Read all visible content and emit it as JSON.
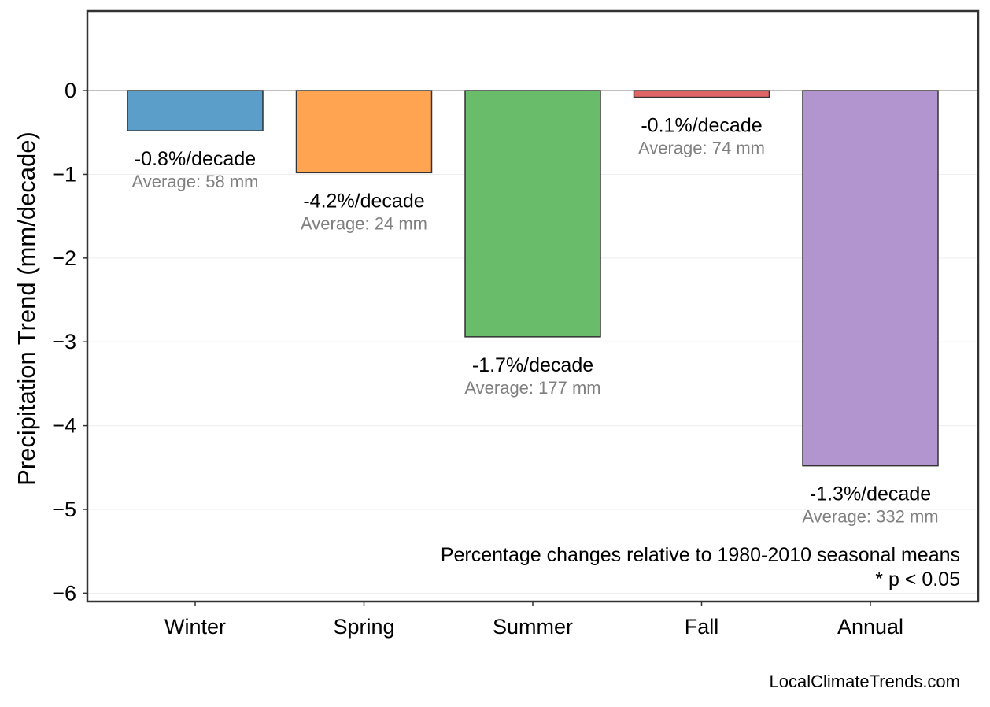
{
  "chart_data": {
    "type": "bar",
    "categories": [
      "Winter",
      "Spring",
      "Summer",
      "Fall",
      "Annual"
    ],
    "values": [
      -0.48,
      -0.98,
      -2.94,
      -0.08,
      -4.48
    ],
    "bar_colors": [
      "#5b9ec9",
      "#ffa552",
      "#69bd6a",
      "#e06565",
      "#b294cf"
    ],
    "percent_labels": [
      "-0.8%/decade",
      "-4.2%/decade",
      "-1.7%/decade",
      "-0.1%/decade",
      "-1.3%/decade"
    ],
    "average_labels": [
      "Average: 58 mm",
      "Average: 24 mm",
      "Average: 177 mm",
      "Average: 74 mm",
      "Average: 332 mm"
    ],
    "ylabel": "Precipitation Trend (mm/decade)",
    "xlabel": "",
    "ylim": [
      -6.1,
      0.95
    ],
    "yticks": [
      0,
      -1,
      -2,
      -3,
      -4,
      -5,
      -6
    ],
    "ytick_labels": [
      "0",
      "−1",
      "−2",
      "−3",
      "−4",
      "−5",
      "−6"
    ],
    "grid": true,
    "zero_line": true
  },
  "annotation": {
    "line1": "Percentage changes relative to 1980-2010 seasonal means",
    "line2": "* p < 0.05"
  },
  "footer": {
    "source": "LocalClimateTrends.com"
  },
  "colors": {
    "axis": "#333333",
    "grid": "#eeeeee",
    "zero_line": "#999999",
    "average_text": "#808080"
  }
}
